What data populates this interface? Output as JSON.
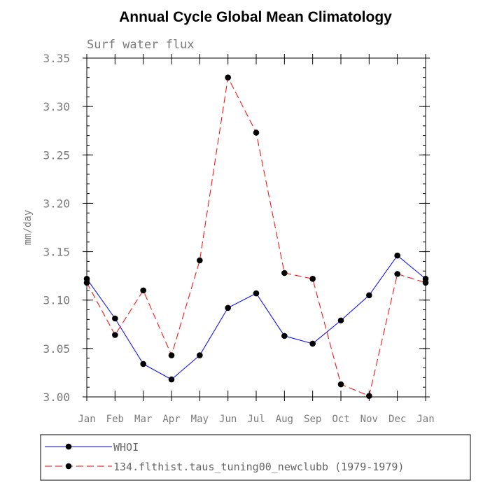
{
  "chart_data": {
    "type": "line",
    "title": "Annual Cycle Global Mean Climatology",
    "subtitle": "Surf water flux",
    "xlabel": "",
    "ylabel": "mm/day",
    "categories": [
      "Jan",
      "Feb",
      "Mar",
      "Apr",
      "May",
      "Jun",
      "Jul",
      "Aug",
      "Sep",
      "Oct",
      "Nov",
      "Dec",
      "Jan"
    ],
    "ylim": [
      3.0,
      3.35
    ],
    "yticks": [
      "3.00",
      "3.05",
      "3.10",
      "3.15",
      "3.20",
      "3.25",
      "3.30",
      "3.35"
    ],
    "ytick_values": [
      3.0,
      3.05,
      3.1,
      3.15,
      3.2,
      3.25,
      3.3,
      3.35
    ],
    "legend_position": "bottom",
    "series": [
      {
        "name": "WHOI",
        "color": "#0000ff",
        "dash": "solid",
        "values": [
          3.122,
          3.081,
          3.034,
          3.018,
          3.043,
          3.092,
          3.107,
          3.063,
          3.055,
          3.079,
          3.105,
          3.146,
          3.122
        ]
      },
      {
        "name": "134.flthist.taus_tuning00_newclubb (1979-1979)",
        "color": "#ff0000",
        "dash": "dashed",
        "values": [
          3.118,
          3.064,
          3.11,
          3.043,
          3.141,
          3.33,
          3.273,
          3.128,
          3.122,
          3.013,
          3.001,
          3.127,
          3.118
        ]
      }
    ]
  }
}
